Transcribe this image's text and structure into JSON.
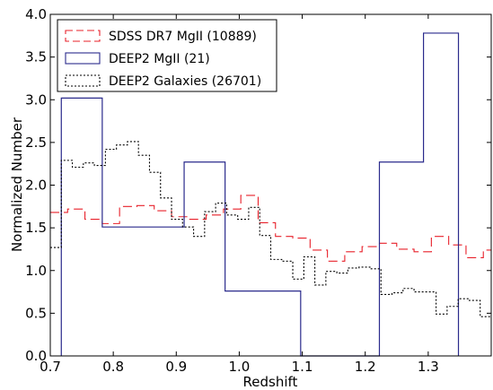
{
  "chart_data": {
    "type": "histogram",
    "xlabel": "Redshift",
    "ylabel": "Normalized Number",
    "xlim": [
      0.7,
      1.4
    ],
    "ylim": [
      0.0,
      4.0
    ],
    "x_ticks": [
      "0.7",
      "0.8",
      "0.9",
      "1.0",
      "1.1",
      "1.2",
      "1.3"
    ],
    "x_tick_values": [
      0.7,
      0.8,
      0.9,
      1.0,
      1.1,
      1.2,
      1.3
    ],
    "y_ticks": [
      "0.0",
      "0.5",
      "1.0",
      "1.5",
      "2.0",
      "2.5",
      "3.0",
      "3.5",
      "4.0"
    ],
    "y_tick_values": [
      0.0,
      0.5,
      1.0,
      1.5,
      2.0,
      2.5,
      3.0,
      3.5,
      4.0
    ],
    "legend_position": "top-left",
    "series": [
      {
        "name": "SDSS DR7 MgII (10889)",
        "color": "#e8202a",
        "linestyle": "dashed",
        "bin_edges": [
          0.7,
          0.7275,
          0.755,
          0.7825,
          0.81,
          0.8375,
          0.865,
          0.8925,
          0.92,
          0.9475,
          0.975,
          1.0025,
          1.03,
          1.0575,
          1.085,
          1.1125,
          1.14,
          1.1675,
          1.195,
          1.2225,
          1.25,
          1.2775,
          1.305,
          1.3325,
          1.36,
          1.3875,
          1.4
        ],
        "values": [
          1.68,
          1.72,
          1.6,
          1.55,
          1.75,
          1.76,
          1.7,
          1.63,
          1.6,
          1.65,
          1.72,
          1.88,
          1.56,
          1.4,
          1.38,
          1.24,
          1.11,
          1.22,
          1.28,
          1.32,
          1.25,
          1.22,
          1.4,
          1.3,
          1.15,
          1.24
        ]
      },
      {
        "name": "DEEP2 MgII (21)",
        "color": "#2a2a8c",
        "linestyle": "solid",
        "bin_edges": [
          0.7175,
          0.7825,
          0.9125,
          0.9775,
          1.0975,
          1.2225,
          1.2925,
          1.348
        ],
        "values": [
          3.02,
          1.51,
          2.27,
          0.76,
          0.0,
          2.27,
          3.78
        ]
      },
      {
        "name": "DEEP2 Galaxies (26701)",
        "color": "#000000",
        "linestyle": "dotted",
        "bin_edges": [
          0.7,
          0.7175,
          0.735,
          0.7525,
          0.77,
          0.7875,
          0.805,
          0.8225,
          0.84,
          0.8575,
          0.875,
          0.8925,
          0.91,
          0.9275,
          0.945,
          0.9625,
          0.98,
          0.9975,
          1.015,
          1.0325,
          1.05,
          1.0675,
          1.085,
          1.1025,
          1.12,
          1.1375,
          1.155,
          1.1725,
          1.19,
          1.2075,
          1.225,
          1.2425,
          1.26,
          1.2775,
          1.295,
          1.3125,
          1.33,
          1.3475,
          1.365,
          1.3825,
          1.4
        ],
        "values": [
          1.27,
          2.29,
          2.21,
          2.26,
          2.23,
          2.42,
          2.47,
          2.51,
          2.35,
          2.15,
          1.85,
          1.6,
          1.51,
          1.4,
          1.69,
          1.79,
          1.65,
          1.6,
          1.74,
          1.41,
          1.13,
          1.11,
          0.9,
          1.16,
          0.83,
          0.99,
          0.97,
          1.03,
          1.04,
          1.02,
          0.72,
          0.74,
          0.79,
          0.75,
          0.75,
          0.49,
          0.58,
          0.67,
          0.65,
          0.46
        ]
      }
    ]
  }
}
